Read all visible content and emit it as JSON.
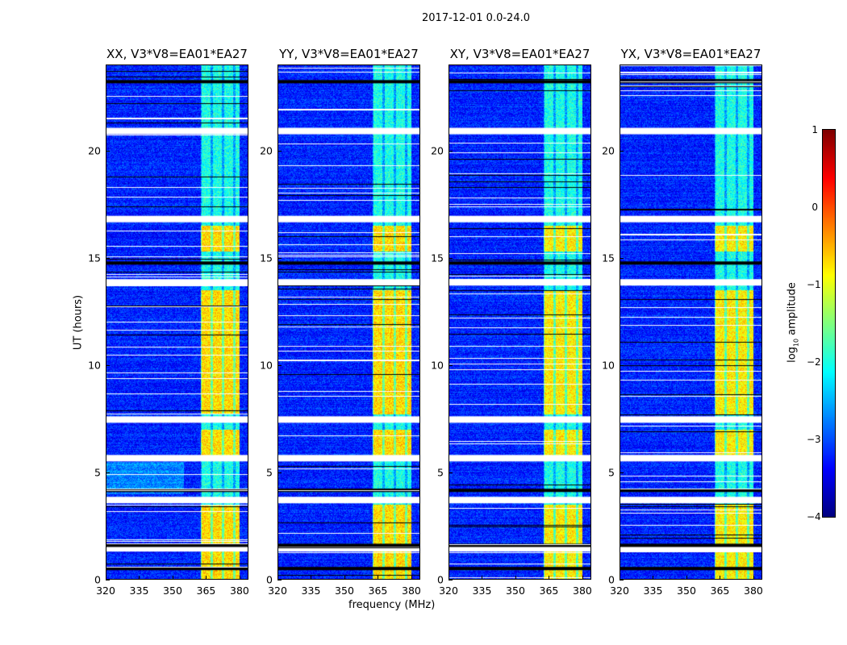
{
  "suptitle": "2017-12-01 0.0-24.0",
  "chart_data": {
    "type": "heatmap",
    "title": "2017-12-01 0.0-24.0",
    "xlabel": "frequency (MHz)",
    "ylabel": "UT (hours)",
    "xlim": [
      320,
      384
    ],
    "ylim": [
      0,
      24
    ],
    "xticks": [
      "320",
      "335",
      "350",
      "365",
      "380"
    ],
    "xtick_values": [
      320,
      335,
      350,
      365,
      380
    ],
    "yticks": [
      "0",
      "5",
      "10",
      "15",
      "20"
    ],
    "ytick_values": [
      0,
      5,
      10,
      15,
      20
    ],
    "panels": [
      {
        "title": "XX, V3*V8=EA01*EA27"
      },
      {
        "title": "YY, V3*V8=EA01*EA27"
      },
      {
        "title": "XY, V3*V8=EA01*EA27"
      },
      {
        "title": "YX, V3*V8=EA01*EA27"
      }
    ],
    "background_log10_amplitude": -3.2,
    "rfi_band_mhz": [
      362.5,
      380
    ],
    "rfi_channels_mhz": [
      [
        363,
        367
      ],
      [
        368,
        372
      ],
      [
        373,
        377
      ],
      [
        378,
        380
      ]
    ],
    "strong_rfi_ut_ranges": [
      [
        0,
        3.5
      ],
      [
        5.7,
        7.0
      ],
      [
        7.7,
        13.5
      ],
      [
        15.3,
        16.5
      ]
    ],
    "flagged_white_ut": [
      20.9,
      16.8,
      13.85,
      7.46,
      5.66,
      3.71,
      1.46
    ],
    "flagged_black_ut": [
      23.2,
      14.75,
      4.16,
      1.6,
      0.52
    ],
    "colorbar": {
      "label": "log₁₀ amplitude",
      "label_main": "log",
      "label_sub": "10",
      "label_rest": " amplitude",
      "colormap": "jet",
      "range": [
        -4,
        1
      ],
      "ticks": [
        "1",
        "0",
        "−1",
        "−2",
        "−3",
        "−4"
      ],
      "tick_values": [
        1,
        0,
        -1,
        -2,
        -3,
        -4
      ]
    }
  }
}
